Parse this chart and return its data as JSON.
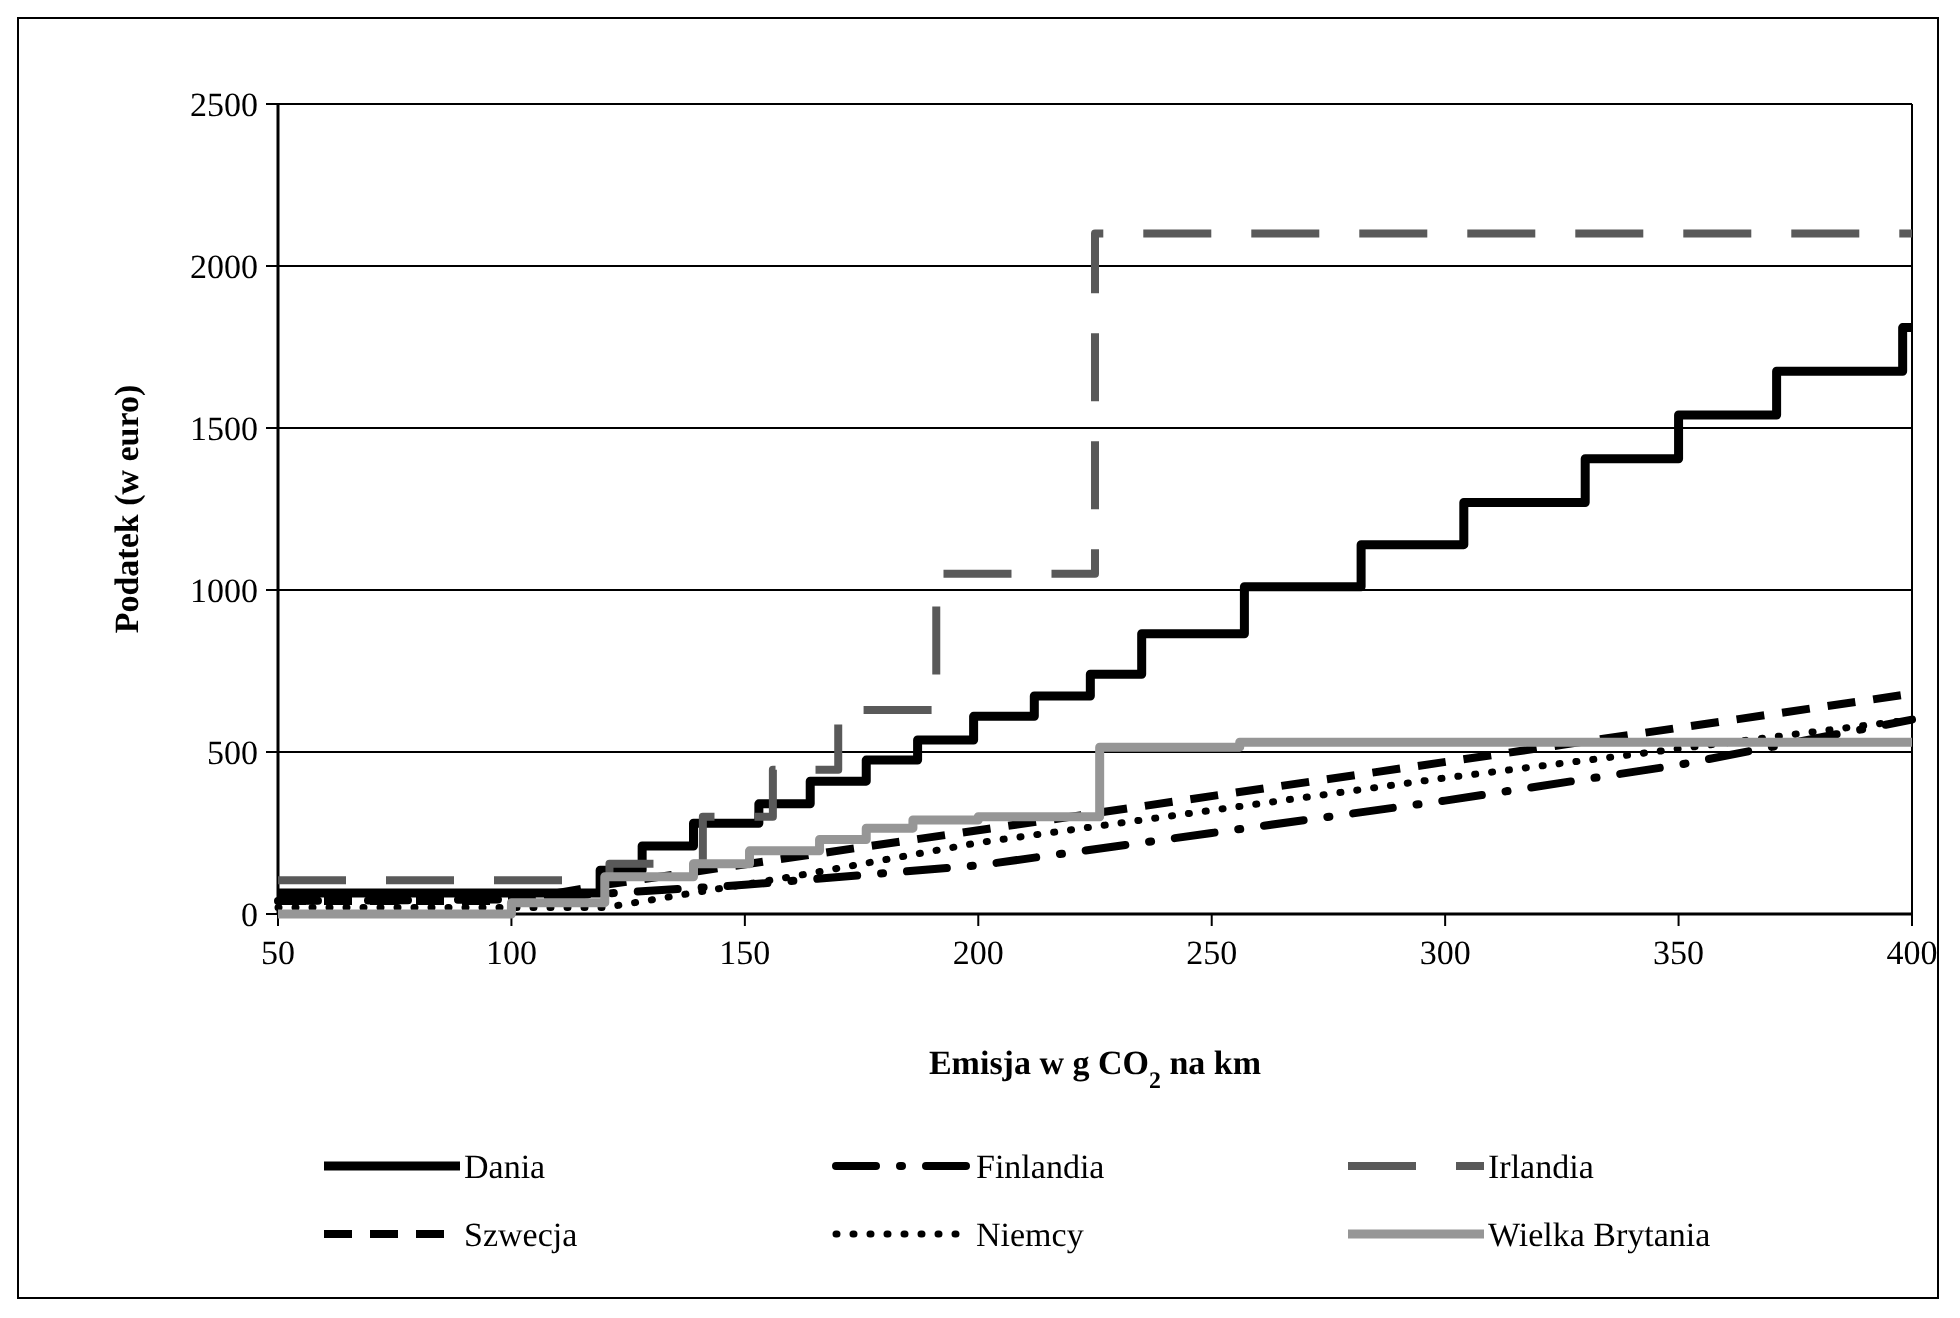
{
  "chart_data": {
    "type": "line",
    "xlabel": "Emisja w g CO$_{2}$ na km",
    "ylabel": "Podatek (w euro)",
    "xlim": [
      50,
      400
    ],
    "xticks": [
      50,
      100,
      150,
      200,
      250,
      300,
      350,
      400
    ],
    "ylim": [
      0,
      2500
    ],
    "yticks": [
      0,
      500,
      1000,
      1500,
      2000,
      2500
    ],
    "grid": "y",
    "legend": "bottom",
    "series": [
      {
        "name": "Dania",
        "type": "step",
        "color": "#000000",
        "line_style": "solid",
        "x": [
          50,
          119,
          128,
          139,
          153,
          164,
          176,
          187,
          199,
          212,
          224,
          235,
          257,
          282,
          304,
          330,
          350,
          371,
          398,
          400
        ],
        "values": [
          65,
          135,
          210,
          280,
          340,
          410,
          475,
          537,
          610,
          673,
          740,
          865,
          1010,
          1140,
          1270,
          1405,
          1540,
          1675,
          1810,
          1810
        ]
      },
      {
        "name": "Finlandia",
        "color": "#000000",
        "line_style": "dashdot",
        "x": [
          50,
          100,
          150,
          200,
          250,
          300,
          350,
          400
        ],
        "values": [
          40,
          45,
          90,
          150,
          250,
          350,
          460,
          600
        ]
      },
      {
        "name": "Irlandia",
        "type": "step",
        "color": "#595959",
        "line_style": "dashed",
        "x": [
          50,
          121,
          141,
          156,
          170,
          191,
          225,
          400
        ],
        "values": [
          104,
          155,
          300,
          445,
          630,
          1050,
          2100,
          2100
        ]
      },
      {
        "name": "Szwecja",
        "color": "#000000",
        "line_style": "dashed",
        "x": [
          50,
          100,
          120,
          400
        ],
        "values": [
          40,
          40,
          90,
          680
        ]
      },
      {
        "name": "Niemcy",
        "color": "#000000",
        "line_style": "dotted",
        "x": [
          50,
          120,
          160,
          200,
          300,
          400
        ],
        "values": [
          20,
          20,
          115,
          220,
          420,
          600
        ]
      },
      {
        "name": "Wielka Brytania",
        "type": "step",
        "color": "#969696",
        "line_style": "solid",
        "x": [
          50,
          100,
          120,
          139,
          151,
          166,
          176,
          186,
          200,
          226,
          256,
          400
        ],
        "values": [
          0,
          35,
          115,
          155,
          195,
          230,
          265,
          290,
          300,
          515,
          530,
          530
        ]
      }
    ]
  }
}
